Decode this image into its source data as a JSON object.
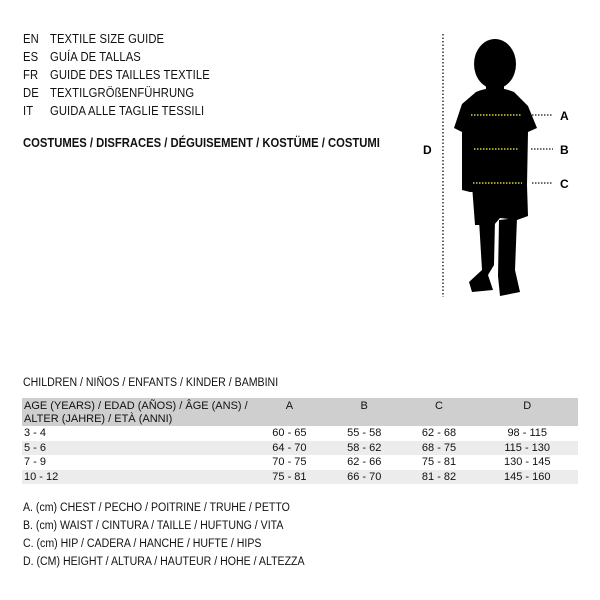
{
  "languages": [
    {
      "code": "EN",
      "title": "TEXTILE SIZE GUIDE"
    },
    {
      "code": "ES",
      "title": "GUÍA DE TALLAS"
    },
    {
      "code": "FR",
      "title": "GUIDE DES TAILLES TEXTILE"
    },
    {
      "code": "DE",
      "title": "TEXTILGRÖßENFÜHRUNG"
    },
    {
      "code": "IT",
      "title": "GUIDA ALLE TAGLIE TESSILI"
    }
  ],
  "category": "COSTUMES / DISFRACES / DÉGUISEMENT / KOSTÜME / COSTUMI",
  "figure": {
    "labels": {
      "a": "A",
      "b": "B",
      "c": "C",
      "d": "D"
    },
    "measure_line_color": "#d8d23a"
  },
  "section_title": "CHILDREN / NIÑOS / ENFANTS / KINDER / BAMBINI",
  "table": {
    "headers": [
      "AGE (YEARS) / EDAD (AÑOS) / ÂGE (ANS) / ALTER (JAHRE) / ETÀ (ANNI)",
      "A",
      "B",
      "C",
      "D"
    ],
    "rows": [
      [
        "3 - 4",
        "60 - 65",
        "55 - 58",
        "62 - 68",
        "98 - 115"
      ],
      [
        "5 - 6",
        "64 - 70",
        "58 - 62",
        "68 - 75",
        "115 - 130"
      ],
      [
        "7 - 9",
        "70 - 75",
        "62 - 66",
        "75 - 81",
        "130 - 145"
      ],
      [
        "10 - 12",
        "75 - 81",
        "66 - 70",
        "81 - 82",
        "145 - 160"
      ]
    ]
  },
  "legend": [
    "A. (cm) CHEST / PECHO / POITRINE / TRUHE / PETTO",
    "B. (cm) WAIST / CINTURA / TAILLE / HÜFTUNG / VITA",
    "C. (cm) HIP / CADERA / HANCHE / HÜFTE / HIPS",
    "D. (CM) HEIGHT / ALTURA / HAUTEUR / HÖHE / ALTEZZA"
  ]
}
